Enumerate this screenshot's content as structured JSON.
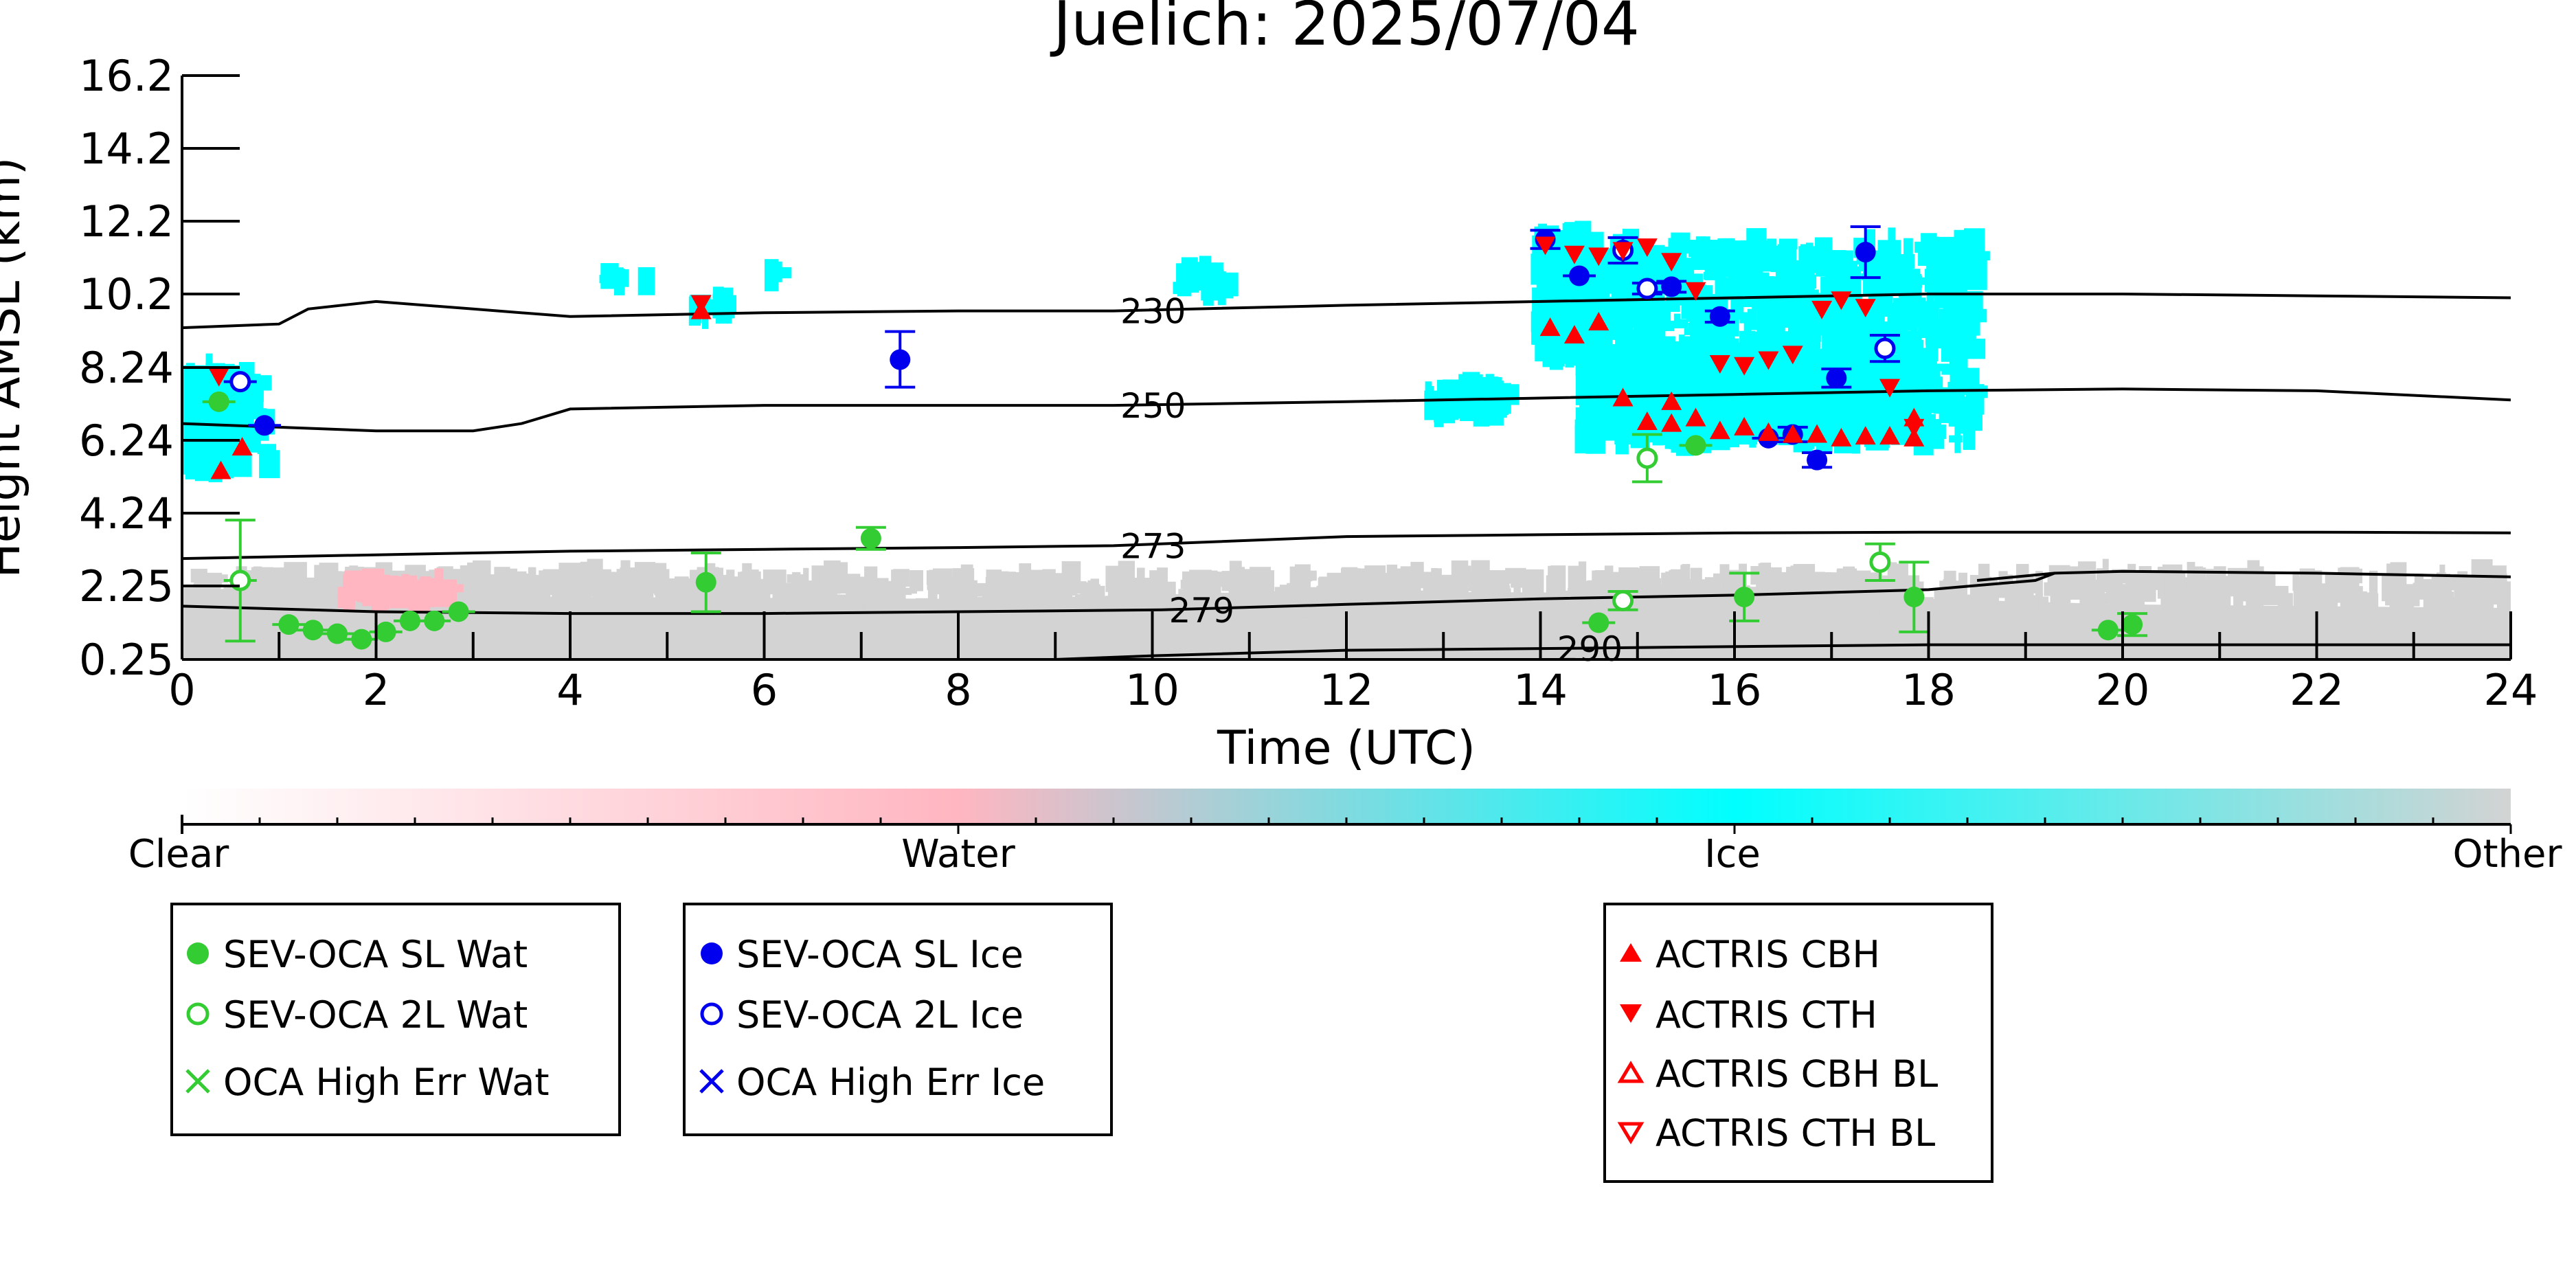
{
  "chart_data": {
    "type": "scatter",
    "title": "Juelich: 2025/07/04",
    "xlabel": "Time (UTC)",
    "ylabel": "Height AMSL (km)",
    "xlim": [
      0,
      24
    ],
    "ylim": [
      0.25,
      16.2
    ],
    "xticks": [
      "0",
      "2",
      "4",
      "6",
      "8",
      "10",
      "12",
      "14",
      "16",
      "18",
      "20",
      "22",
      "24"
    ],
    "yticks": [
      "16.2",
      "14.2",
      "12.2",
      "10.2",
      "8.24",
      "6.24",
      "4.24",
      "2.25",
      "0.25"
    ],
    "ytick_values": [
      16.2,
      14.2,
      12.2,
      10.2,
      8.24,
      6.24,
      4.24,
      2.25,
      0.25
    ],
    "colorbar": {
      "labels": [
        "Clear",
        "Water",
        "Ice",
        "Other"
      ],
      "colors": [
        "#ffffff",
        "#ffb6c1",
        "#00ffff",
        "#d3d3d3"
      ]
    },
    "contours": [
      {
        "label": "230",
        "label_x": 9.6,
        "points": [
          [
            0,
            9.3
          ],
          [
            1,
            9.4
          ],
          [
            1.3,
            9.8
          ],
          [
            2,
            10.0
          ],
          [
            3,
            9.8
          ],
          [
            4,
            9.6
          ],
          [
            6,
            9.7
          ],
          [
            8,
            9.75
          ],
          [
            9.6,
            9.75
          ],
          [
            12,
            9.9
          ],
          [
            14,
            10.0
          ],
          [
            16,
            10.1
          ],
          [
            18,
            10.2
          ],
          [
            20,
            10.2
          ],
          [
            22,
            10.15
          ],
          [
            24,
            10.1
          ]
        ]
      },
      {
        "label": "250",
        "label_x": 9.6,
        "points": [
          [
            0,
            6.7
          ],
          [
            1,
            6.6
          ],
          [
            2,
            6.5
          ],
          [
            3,
            6.5
          ],
          [
            3.5,
            6.7
          ],
          [
            4,
            7.1
          ],
          [
            6,
            7.2
          ],
          [
            8,
            7.2
          ],
          [
            9.6,
            7.2
          ],
          [
            12,
            7.3
          ],
          [
            14,
            7.4
          ],
          [
            16,
            7.5
          ],
          [
            18,
            7.6
          ],
          [
            20,
            7.65
          ],
          [
            22,
            7.6
          ],
          [
            24,
            7.35
          ]
        ]
      },
      {
        "label": "273",
        "label_x": 9.6,
        "points": [
          [
            0,
            3.0
          ],
          [
            2,
            3.1
          ],
          [
            4,
            3.2
          ],
          [
            6,
            3.25
          ],
          [
            8,
            3.3
          ],
          [
            9.6,
            3.35
          ],
          [
            12,
            3.6
          ],
          [
            14,
            3.65
          ],
          [
            16,
            3.7
          ],
          [
            18,
            3.72
          ],
          [
            20,
            3.72
          ],
          [
            22,
            3.72
          ],
          [
            24,
            3.7
          ]
        ]
      },
      {
        "label": "279",
        "label_x": 10.1,
        "points": [
          [
            0,
            1.7
          ],
          [
            2,
            1.55
          ],
          [
            4,
            1.5
          ],
          [
            6,
            1.5
          ],
          [
            8,
            1.55
          ],
          [
            10.1,
            1.6
          ],
          [
            12,
            1.75
          ],
          [
            14,
            1.9
          ],
          [
            16,
            2.0
          ],
          [
            18,
            2.15
          ],
          [
            19.1,
            2.4
          ],
          [
            19.3,
            2.6
          ],
          [
            18.5,
            2.4
          ],
          [
            19.3,
            2.6
          ],
          [
            20,
            2.65
          ],
          [
            22,
            2.6
          ],
          [
            24,
            2.5
          ]
        ]
      },
      {
        "label": "290",
        "label_x": 14.1,
        "points": [
          [
            9,
            0.25
          ],
          [
            10,
            0.35
          ],
          [
            12,
            0.5
          ],
          [
            14.1,
            0.55
          ],
          [
            16,
            0.6
          ],
          [
            18,
            0.65
          ],
          [
            20,
            0.65
          ],
          [
            22,
            0.65
          ],
          [
            24,
            0.65
          ]
        ]
      }
    ],
    "series": [
      {
        "name": "SEV-OCA SL Wat",
        "color": "#33cc33",
        "marker": "filled-circle",
        "points": [
          [
            0.38,
            7.3,
            0
          ],
          [
            0.6,
            2.4,
            0
          ],
          [
            1.1,
            1.2,
            0
          ],
          [
            1.35,
            1.05,
            0
          ],
          [
            1.6,
            0.95,
            0
          ],
          [
            1.85,
            0.8,
            0
          ],
          [
            2.1,
            1.0,
            0
          ],
          [
            2.35,
            1.3,
            0
          ],
          [
            2.6,
            1.3,
            0
          ],
          [
            2.85,
            1.55,
            0
          ],
          [
            5.4,
            2.35,
            0.8
          ],
          [
            7.1,
            3.55,
            0.3
          ],
          [
            14.6,
            1.25,
            0
          ],
          [
            15.6,
            6.1,
            0
          ],
          [
            16.1,
            1.95,
            0.65
          ],
          [
            17.85,
            1.95,
            0.95
          ],
          [
            19.85,
            1.05,
            0
          ],
          [
            20.1,
            1.2,
            0.3
          ]
        ]
      },
      {
        "name": "SEV-OCA 2L Wat",
        "color": "#33cc33",
        "marker": "open-circle",
        "points": [
          [
            0.6,
            2.4,
            1.65
          ],
          [
            14.85,
            1.85,
            0.25
          ],
          [
            15.1,
            5.75,
            0.65
          ],
          [
            17.5,
            2.9,
            0.5
          ]
        ]
      },
      {
        "name": "OCA High Err Wat",
        "color": "#33cc33",
        "marker": "x",
        "points": []
      },
      {
        "name": "SEV-OCA SL Ice",
        "color": "#0000ee",
        "marker": "filled-circle",
        "points": [
          [
            0.85,
            6.65,
            0
          ],
          [
            7.4,
            8.45,
            0.75
          ],
          [
            14.05,
            11.7,
            0.25
          ],
          [
            14.4,
            10.7,
            0
          ],
          [
            15.35,
            10.4,
            0.15
          ],
          [
            15.85,
            9.6,
            0.15
          ],
          [
            16.35,
            6.3,
            0
          ],
          [
            16.6,
            6.4,
            0.2
          ],
          [
            16.85,
            5.7,
            0.2
          ],
          [
            17.05,
            7.95,
            0.25
          ],
          [
            17.35,
            11.35,
            0.7
          ]
        ]
      },
      {
        "name": "SEV-OCA 2L Ice",
        "color": "#0000ee",
        "marker": "open-circle",
        "points": [
          [
            0.6,
            7.85,
            0
          ],
          [
            14.85,
            11.4,
            0.35
          ],
          [
            15.1,
            10.35,
            0.15
          ],
          [
            17.55,
            8.75,
            0.35
          ]
        ]
      },
      {
        "name": "OCA High Err Ice",
        "color": "#0000ee",
        "marker": "x",
        "points": []
      },
      {
        "name": "ACTRIS CBH",
        "color": "#ff0000",
        "marker": "triangle-up",
        "points": [
          [
            0.4,
            5.4
          ],
          [
            0.62,
            6.05
          ],
          [
            5.35,
            9.75
          ],
          [
            14.1,
            9.3
          ],
          [
            14.35,
            9.1
          ],
          [
            14.6,
            9.45
          ],
          [
            14.85,
            7.4
          ],
          [
            15.1,
            6.75
          ],
          [
            15.35,
            6.7
          ],
          [
            15.35,
            7.3
          ],
          [
            15.6,
            6.85
          ],
          [
            15.85,
            6.5
          ],
          [
            16.1,
            6.6
          ],
          [
            16.35,
            6.45
          ],
          [
            16.6,
            6.4
          ],
          [
            16.85,
            6.4
          ],
          [
            17.1,
            6.3
          ],
          [
            17.35,
            6.35
          ],
          [
            17.6,
            6.35
          ],
          [
            17.85,
            6.85
          ],
          [
            17.85,
            6.3
          ]
        ]
      },
      {
        "name": "ACTRIS CTH",
        "color": "#ff0000",
        "marker": "triangle-down",
        "points": [
          [
            0.38,
            8.0
          ],
          [
            5.35,
            9.95
          ],
          [
            14.05,
            11.55
          ],
          [
            14.35,
            11.3
          ],
          [
            14.6,
            11.25
          ],
          [
            14.85,
            11.4
          ],
          [
            15.1,
            11.5
          ],
          [
            15.35,
            11.1
          ],
          [
            15.6,
            10.3
          ],
          [
            15.85,
            8.35
          ],
          [
            16.1,
            8.3
          ],
          [
            16.35,
            8.45
          ],
          [
            16.6,
            8.6
          ],
          [
            16.9,
            9.8
          ],
          [
            17.1,
            10.05
          ],
          [
            17.35,
            9.85
          ],
          [
            17.6,
            7.7
          ],
          [
            17.85,
            6.6
          ]
        ]
      },
      {
        "name": "ACTRIS CBH BL",
        "color": "#ff0000",
        "marker": "open-triangle-up",
        "points": []
      },
      {
        "name": "ACTRIS CTH BL",
        "color": "#ff0000",
        "marker": "open-triangle-down",
        "points": []
      }
    ],
    "legend_placement": "below",
    "grid": false
  }
}
